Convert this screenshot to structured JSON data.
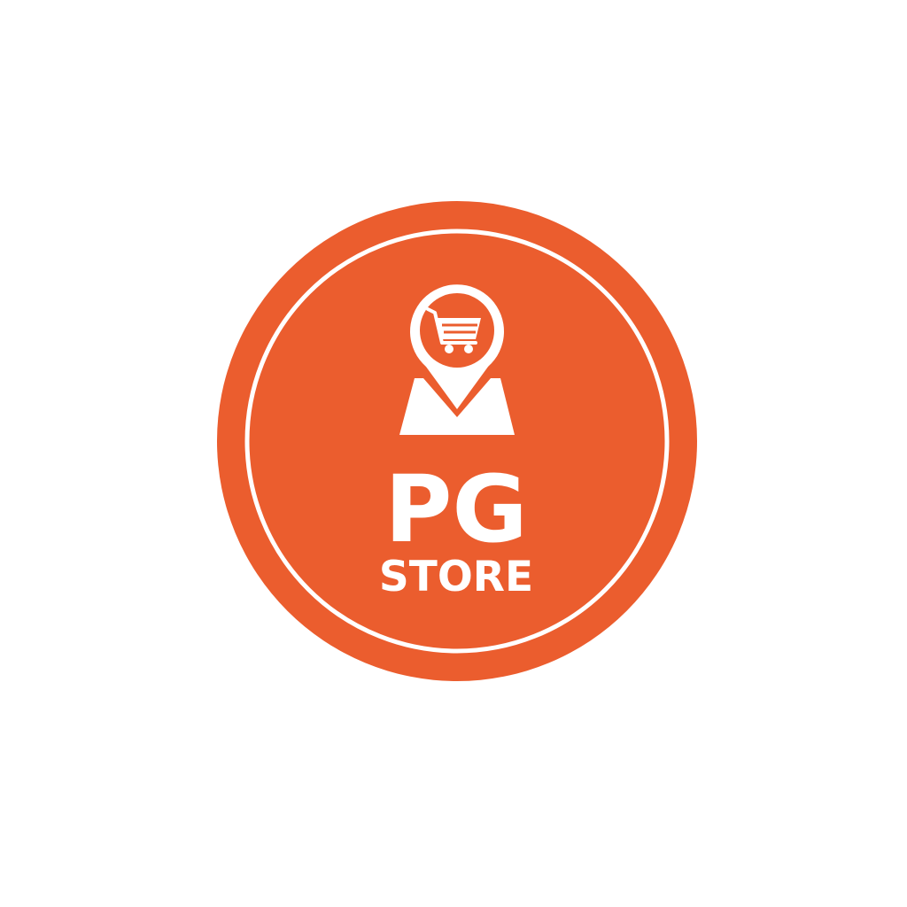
{
  "brand": {
    "name": "PG",
    "tagline": "STORE",
    "colors": {
      "primary": "#EB5D2E",
      "foreground": "#FFFFFF",
      "background": "#FFFFFF"
    }
  },
  "icons": {
    "badge": "map-pin-icon",
    "inner": "shopping-cart-icon"
  }
}
